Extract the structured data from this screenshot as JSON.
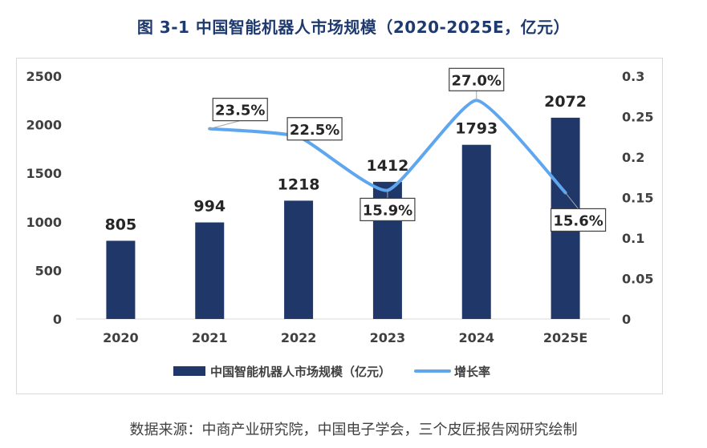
{
  "title": "图  3-1  中国智能机器人市场规模（2020-2025E，亿元）",
  "source": "数据来源：中商产业研究院，中国电子学会，三个皮匠报告网研究绘制",
  "colors": {
    "bar": "#1f3869",
    "line": "#5ea7f0",
    "title": "#1f3a6e"
  },
  "chart_data": {
    "type": "bar",
    "title": "图  3-1  中国智能机器人市场规模（2020-2025E，亿元）",
    "categories": [
      "2020",
      "2021",
      "2022",
      "2023",
      "2024",
      "2025E"
    ],
    "series": [
      {
        "name": "中国智能机器人市场规模（亿元）",
        "type": "bar",
        "axis": "left",
        "values": [
          805,
          994,
          1218,
          1412,
          1793,
          2072
        ],
        "labels": [
          "805",
          "994",
          "1218",
          "1412",
          "1793",
          "2072"
        ]
      },
      {
        "name": "增长率",
        "type": "line",
        "axis": "right",
        "smooth": true,
        "values": [
          null,
          0.235,
          0.225,
          0.159,
          0.27,
          0.156
        ],
        "labels": [
          "",
          "23.5%",
          "22.5%",
          "15.9%",
          "27.0%",
          "15.6%"
        ]
      }
    ],
    "y_left": {
      "min": 0,
      "max": 2500,
      "ticks": [
        "0",
        "500",
        "1000",
        "1500",
        "2000",
        "2500"
      ]
    },
    "y_right": {
      "min": 0,
      "max": 0.3,
      "ticks": [
        "0",
        "0.05",
        "0.1",
        "0.15",
        "0.2",
        "0.25",
        "0.3"
      ]
    },
    "legend_position": "bottom",
    "grid": false
  }
}
